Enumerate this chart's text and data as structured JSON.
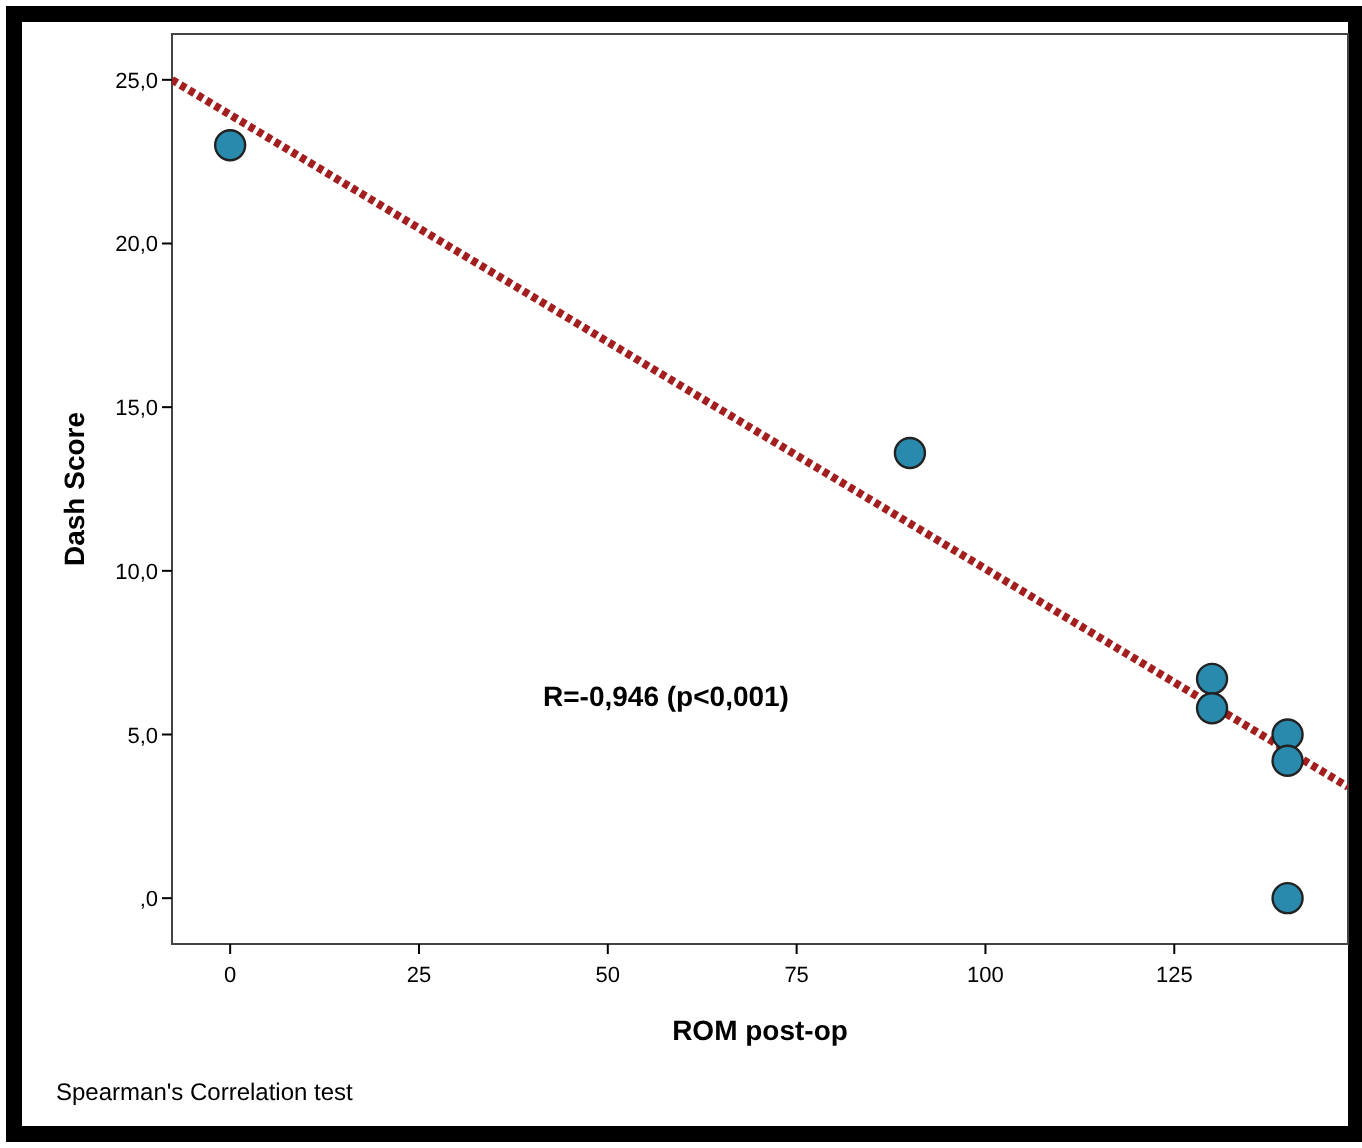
{
  "chart_data": {
    "type": "scatter",
    "xlabel": "ROM post-op",
    "ylabel": "Dash Score",
    "annotations": [
      "R=-0,946 (p<0,001)",
      "Spearman's Correlation test"
    ],
    "xlim": [
      -7.7,
      148
    ],
    "xticks": [
      0,
      25,
      50,
      75,
      100,
      125
    ],
    "ylim": [
      -1.4,
      26.4
    ],
    "yticks": [
      {
        "value": 0,
        "label": ",0"
      },
      {
        "value": 5,
        "label": "5,0"
      },
      {
        "value": 10,
        "label": "10,0"
      },
      {
        "value": 15,
        "label": "15,0"
      },
      {
        "value": 20,
        "label": "20,0"
      },
      {
        "value": 25,
        "label": "25,0"
      }
    ],
    "grid": false,
    "marker": "circle",
    "series": [
      {
        "type": "line",
        "color": "#a31f1f",
        "line_style": "dotted",
        "marker": "none",
        "x": [
          -7.7,
          148
        ],
        "values": [
          25.0,
          3.4
        ]
      },
      {
        "color": "#2a8aae",
        "x": [
          0,
          90,
          130,
          130,
          140,
          140,
          140
        ],
        "values": [
          23,
          13.6,
          6.7,
          5.8,
          5.0,
          4.2,
          0
        ]
      }
    ]
  }
}
